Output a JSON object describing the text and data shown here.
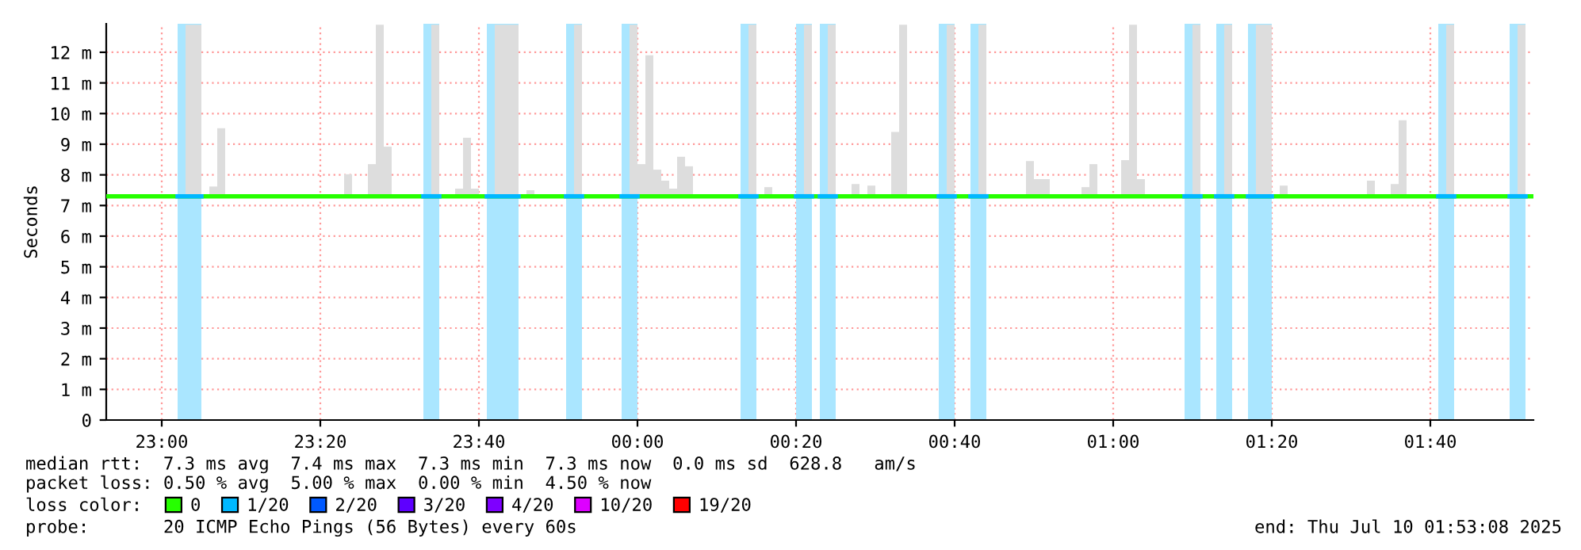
{
  "chart_data": {
    "type": "bar",
    "ylabel": "Seconds",
    "color": "#dddddd",
    "x": [
      "2025-07-09T23:03",
      "2025-07-09T23:04",
      "2025-07-09T23:05",
      "2025-07-09T23:06",
      "2025-07-09T23:07",
      "2025-07-09T23:23",
      "2025-07-09T23:26",
      "2025-07-09T23:27",
      "2025-07-09T23:28",
      "2025-07-09T23:34",
      "2025-07-09T23:37",
      "2025-07-09T23:38",
      "2025-07-09T23:39",
      "2025-07-09T23:42",
      "2025-07-09T23:43",
      "2025-07-09T23:44",
      "2025-07-09T23:46",
      "2025-07-09T23:52",
      "2025-07-09T23:59",
      "2025-07-10T00:00",
      "2025-07-10T00:01",
      "2025-07-10T00:02",
      "2025-07-10T00:03",
      "2025-07-10T00:04",
      "2025-07-10T00:05",
      "2025-07-10T00:06",
      "2025-07-10T00:14",
      "2025-07-10T00:16",
      "2025-07-10T00:21",
      "2025-07-10T00:24",
      "2025-07-10T00:27",
      "2025-07-10T00:29",
      "2025-07-10T00:32",
      "2025-07-10T00:33",
      "2025-07-10T00:39",
      "2025-07-10T00:43",
      "2025-07-10T00:49",
      "2025-07-10T00:50",
      "2025-07-10T00:51",
      "2025-07-10T00:56",
      "2025-07-10T00:57",
      "2025-07-10T01:01",
      "2025-07-10T01:02",
      "2025-07-10T01:03",
      "2025-07-10T01:10",
      "2025-07-10T01:14",
      "2025-07-10T01:18",
      "2025-07-10T01:19",
      "2025-07-10T01:21",
      "2025-07-10T01:32",
      "2025-07-10T01:35",
      "2025-07-10T01:36",
      "2025-07-10T01:42",
      "2025-07-10T01:51"
    ],
    "base": [
      7.3,
      7.3,
      null,
      7.3,
      7.3,
      7.3,
      7.3,
      7.3,
      7.3,
      7.3,
      7.3,
      7.3,
      7.3,
      7.3,
      7.3,
      7.3,
      7.3,
      7.3,
      7.3,
      7.3,
      7.3,
      7.3,
      7.3,
      7.3,
      7.3,
      7.3,
      7.3,
      7.3,
      7.3,
      7.3,
      7.3,
      7.3,
      7.3,
      7.3,
      7.3,
      7.3,
      7.3,
      7.3,
      7.3,
      7.3,
      7.3,
      7.3,
      7.3,
      7.3,
      7.3,
      7.3,
      7.3,
      7.3,
      7.3,
      7.3,
      7.3,
      7.3,
      7.3,
      7.3
    ],
    "values": [
      5.6,
      5.6,
      null,
      0.32,
      2.22,
      0.72,
      1.05,
      5.6,
      1.62,
      5.6,
      0.25,
      1.91,
      0.25,
      5.6,
      5.6,
      5.6,
      0.2,
      5.6,
      5.6,
      1.05,
      4.6,
      0.87,
      0.51,
      0.25,
      1.29,
      0.98,
      5.6,
      0.3,
      5.6,
      5.6,
      0.4,
      0.35,
      2.1,
      5.6,
      5.6,
      5.6,
      1.15,
      0.56,
      0.56,
      0.3,
      1.05,
      1.18,
      5.6,
      0.56,
      5.6,
      5.6,
      5.6,
      5.6,
      0.35,
      0.51,
      0.4,
      2.48,
      5.6,
      5.6
    ],
    "series": [
      {
        "type": "line",
        "name": "0",
        "color": "#26ff00",
        "x": [
          "2025-07-09T22:53",
          "2025-07-10T01:53"
        ],
        "values": [
          7.3,
          7.3
        ]
      },
      {
        "type": "line",
        "name": "1/20",
        "color": "#00b8ff",
        "x": [
          "2025-07-09T23:02",
          "2025-07-09T23:05"
        ],
        "values": [
          7.3,
          7.3
        ]
      },
      {
        "type": "line",
        "color": "#00b8ff",
        "x": [
          "2025-07-09T23:33",
          "2025-07-09T23:35"
        ],
        "values": [
          7.3,
          7.3
        ]
      },
      {
        "type": "line",
        "color": "#00b8ff",
        "x": [
          "2025-07-09T23:41",
          "2025-07-09T23:45"
        ],
        "values": [
          7.3,
          7.3
        ]
      },
      {
        "type": "line",
        "color": "#00b8ff",
        "x": [
          "2025-07-09T23:51",
          "2025-07-09T23:53"
        ],
        "values": [
          7.3,
          7.3
        ]
      },
      {
        "type": "line",
        "color": "#00b8ff",
        "x": [
          "2025-07-09T23:58",
          "2025-07-10T00:00"
        ],
        "values": [
          7.3,
          7.3
        ]
      },
      {
        "type": "line",
        "color": "#00b8ff",
        "x": [
          "2025-07-10T00:13",
          "2025-07-10T00:15"
        ],
        "values": [
          7.3,
          7.3
        ]
      },
      {
        "type": "line",
        "color": "#00b8ff",
        "x": [
          "2025-07-10T00:20",
          "2025-07-10T00:22"
        ],
        "values": [
          7.3,
          7.3
        ]
      },
      {
        "type": "line",
        "color": "#00b8ff",
        "x": [
          "2025-07-10T00:23",
          "2025-07-10T00:25"
        ],
        "values": [
          7.3,
          7.3
        ]
      },
      {
        "type": "line",
        "color": "#00b8ff",
        "x": [
          "2025-07-10T00:38",
          "2025-07-10T00:40"
        ],
        "values": [
          7.3,
          7.3
        ]
      },
      {
        "type": "line",
        "color": "#00b8ff",
        "x": [
          "2025-07-10T00:42",
          "2025-07-10T00:44"
        ],
        "values": [
          7.3,
          7.3
        ]
      },
      {
        "type": "line",
        "color": "#00b8ff",
        "x": [
          "2025-07-10T01:09",
          "2025-07-10T01:11"
        ],
        "values": [
          7.3,
          7.3
        ]
      },
      {
        "type": "line",
        "color": "#00b8ff",
        "x": [
          "2025-07-10T01:13",
          "2025-07-10T01:15"
        ],
        "values": [
          7.3,
          7.3
        ]
      },
      {
        "type": "line",
        "color": "#00b8ff",
        "x": [
          "2025-07-10T01:17",
          "2025-07-10T01:20"
        ],
        "values": [
          7.3,
          7.3
        ]
      },
      {
        "type": "line",
        "color": "#00b8ff",
        "x": [
          "2025-07-10T01:41",
          "2025-07-10T01:43"
        ],
        "values": [
          7.3,
          7.3
        ]
      },
      {
        "type": "line",
        "color": "#00b8ff",
        "x": [
          "2025-07-10T01:50",
          "2025-07-10T01:52"
        ],
        "values": [
          7.3,
          7.3
        ]
      },
      {
        "type": "line",
        "name": "2/20",
        "color": "#0059ff",
        "values": [
          null,
          null,
          null,
          null,
          null,
          null,
          null,
          null,
          null,
          null,
          null,
          null,
          null,
          null,
          null,
          null,
          null,
          null,
          null,
          null,
          null,
          null,
          null,
          null,
          null,
          null,
          null,
          null,
          null,
          null,
          null,
          null,
          null,
          null,
          null,
          null,
          null,
          null,
          null,
          null,
          null,
          null,
          null,
          null,
          null,
          null,
          null,
          null,
          null,
          null,
          null,
          null,
          null,
          null
        ]
      },
      {
        "type": "line",
        "name": "3/20",
        "color": "#5e00ff",
        "values": [
          null,
          null,
          null,
          null,
          null,
          null,
          null,
          null,
          null,
          null,
          null,
          null,
          null,
          null,
          null,
          null,
          null,
          null,
          null,
          null,
          null,
          null,
          null,
          null,
          null,
          null,
          null,
          null,
          null,
          null,
          null,
          null,
          null,
          null,
          null,
          null,
          null,
          null,
          null,
          null,
          null,
          null,
          null,
          null,
          null,
          null,
          null,
          null,
          null,
          null,
          null,
          null,
          null,
          null
        ]
      },
      {
        "type": "line",
        "name": "4/20",
        "color": "#7e00ff",
        "values": [
          null,
          null,
          null,
          null,
          null,
          null,
          null,
          null,
          null,
          null,
          null,
          null,
          null,
          null,
          null,
          null,
          null,
          null,
          null,
          null,
          null,
          null,
          null,
          null,
          null,
          null,
          null,
          null,
          null,
          null,
          null,
          null,
          null,
          null,
          null,
          null,
          null,
          null,
          null,
          null,
          null,
          null,
          null,
          null,
          null,
          null,
          null,
          null,
          null,
          null,
          null,
          null,
          null,
          null
        ]
      },
      {
        "type": "line",
        "name": "10/20",
        "color": "#dd00ff",
        "values": [
          null,
          null,
          null,
          null,
          null,
          null,
          null,
          null,
          null,
          null,
          null,
          null,
          null,
          null,
          null,
          null,
          null,
          null,
          null,
          null,
          null,
          null,
          null,
          null,
          null,
          null,
          null,
          null,
          null,
          null,
          null,
          null,
          null,
          null,
          null,
          null,
          null,
          null,
          null,
          null,
          null,
          null,
          null,
          null,
          null,
          null,
          null,
          null,
          null,
          null,
          null,
          null,
          null,
          null
        ]
      },
      {
        "type": "line",
        "name": "19/20",
        "color": "#ff0000",
        "values": [
          null,
          null,
          null,
          null,
          null,
          null,
          null,
          null,
          null,
          null,
          null,
          null,
          null,
          null,
          null,
          null,
          null,
          null,
          null,
          null,
          null,
          null,
          null,
          null,
          null,
          null,
          null,
          null,
          null,
          null,
          null,
          null,
          null,
          null,
          null,
          null,
          null,
          null,
          null,
          null,
          null,
          null,
          null,
          null,
          null,
          null,
          null,
          null,
          null,
          null,
          null,
          null,
          null,
          null
        ]
      }
    ],
    "bands": [
      {
        "axis": "x",
        "from": "2025-07-09T23:02",
        "to": "2025-07-09T23:05",
        "color": "#aae6ff"
      },
      {
        "axis": "x",
        "from": "2025-07-09T23:33",
        "to": "2025-07-09T23:35",
        "color": "#aae6ff"
      },
      {
        "axis": "x",
        "from": "2025-07-09T23:41",
        "to": "2025-07-09T23:45",
        "color": "#aae6ff"
      },
      {
        "axis": "x",
        "from": "2025-07-09T23:51",
        "to": "2025-07-09T23:53",
        "color": "#aae6ff"
      },
      {
        "axis": "x",
        "from": "2025-07-09T23:58",
        "to": "2025-07-10T00:00",
        "color": "#aae6ff"
      },
      {
        "axis": "x",
        "from": "2025-07-10T00:13",
        "to": "2025-07-10T00:15",
        "color": "#aae6ff"
      },
      {
        "axis": "x",
        "from": "2025-07-10T00:20",
        "to": "2025-07-10T00:22",
        "color": "#aae6ff"
      },
      {
        "axis": "x",
        "from": "2025-07-10T00:23",
        "to": "2025-07-10T00:25",
        "color": "#aae6ff"
      },
      {
        "axis": "x",
        "from": "2025-07-10T00:38",
        "to": "2025-07-10T00:40",
        "color": "#aae6ff"
      },
      {
        "axis": "x",
        "from": "2025-07-10T00:42",
        "to": "2025-07-10T00:44",
        "color": "#aae6ff"
      },
      {
        "axis": "x",
        "from": "2025-07-10T01:09",
        "to": "2025-07-10T01:11",
        "color": "#aae6ff"
      },
      {
        "axis": "x",
        "from": "2025-07-10T01:13",
        "to": "2025-07-10T01:15",
        "color": "#aae6ff"
      },
      {
        "axis": "x",
        "from": "2025-07-10T01:17",
        "to": "2025-07-10T01:20",
        "color": "#aae6ff"
      },
      {
        "axis": "x",
        "from": "2025-07-10T01:41",
        "to": "2025-07-10T01:43",
        "color": "#aae6ff"
      },
      {
        "axis": "x",
        "from": "2025-07-10T01:50",
        "to": "2025-07-10T01:52",
        "color": "#aae6ff"
      }
    ],
    "xlim": [
      "2025-07-09T22:53",
      "2025-07-10T01:53"
    ],
    "xticks": [
      {
        "value": "2025-07-09T23:00",
        "label": "23:00"
      },
      {
        "value": "2025-07-09T23:20",
        "label": "23:20"
      },
      {
        "value": "2025-07-09T23:40",
        "label": "23:40"
      },
      {
        "value": "2025-07-10T00:00",
        "label": "00:00"
      },
      {
        "value": "2025-07-10T00:20",
        "label": "00:20"
      },
      {
        "value": "2025-07-10T00:40",
        "label": "00:40"
      },
      {
        "value": "2025-07-10T01:00",
        "label": "01:00"
      },
      {
        "value": "2025-07-10T01:20",
        "label": "01:20"
      },
      {
        "value": "2025-07-10T01:40",
        "label": "01:40"
      }
    ],
    "ylim": [
      0,
      12.93
    ],
    "yticks": [
      0,
      {
        "value": 1,
        "label": "1 m"
      },
      {
        "value": 2,
        "label": "2 m"
      },
      {
        "value": 3,
        "label": "3 m"
      },
      {
        "value": 4,
        "label": "4 m"
      },
      {
        "value": 5,
        "label": "5 m"
      },
      {
        "value": 6,
        "label": "6 m"
      },
      {
        "value": 7,
        "label": "7 m"
      },
      {
        "value": 8,
        "label": "8 m"
      },
      {
        "value": 9,
        "label": "9 m"
      },
      {
        "value": 10,
        "label": "10 m"
      },
      {
        "value": 11,
        "label": "11 m"
      },
      {
        "value": 12,
        "label": "12 m"
      }
    ],
    "grid": true,
    "legend": "bottom",
    "annotations": [
      "median rtt:  7.3 ms avg  7.4 ms max  7.3 ms min  7.3 ms now  0.0 ms sd  628.8   am/s",
      "packet loss: 0.50 % avg  5.00 % max  0.00 % min  4.50 % now",
      "loss color:",
      "probe:       20 ICMP Echo Pings (56 Bytes) every 60s",
      "end: Thu Jul 10 01:53:08 2025"
    ]
  }
}
